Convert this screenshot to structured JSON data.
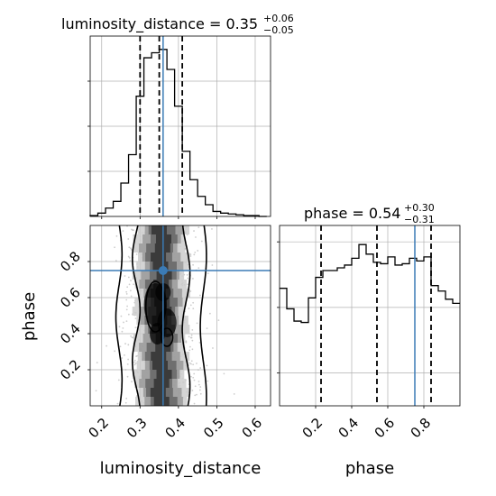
{
  "chart_data": [
    {
      "type": "histogram",
      "panel": "luminosity_distance-1d",
      "title": {
        "param": "luminosity_distance",
        "value": "0.35",
        "upper": "+0.06",
        "lower": "−0.05"
      },
      "bin_edges": [
        0.17,
        0.19,
        0.21,
        0.23,
        0.25,
        0.27,
        0.29,
        0.31,
        0.33,
        0.35,
        0.37,
        0.39,
        0.41,
        0.43,
        0.45,
        0.47,
        0.49,
        0.51,
        0.53,
        0.55,
        0.57,
        0.59,
        0.61,
        0.63
      ],
      "counts": [
        0.005,
        0.02,
        0.05,
        0.09,
        0.2,
        0.37,
        0.72,
        0.95,
        0.98,
        1.0,
        0.88,
        0.66,
        0.39,
        0.22,
        0.12,
        0.07,
        0.03,
        0.02,
        0.015,
        0.01,
        0.005,
        0.005,
        0.0
      ],
      "quantiles": [
        0.3,
        0.35,
        0.41
      ],
      "truth": 0.36,
      "xlim": [
        0.17,
        0.64
      ],
      "ylim": [
        0,
        1.08
      ],
      "grid": true
    },
    {
      "type": "histogram",
      "panel": "phase-1d",
      "title": {
        "param": "phase",
        "value": "0.54",
        "upper": "+0.30",
        "lower": "−0.31"
      },
      "bin_edges": [
        0.0,
        0.04,
        0.08,
        0.12,
        0.16,
        0.2,
        0.24,
        0.28,
        0.32,
        0.36,
        0.4,
        0.44,
        0.48,
        0.52,
        0.56,
        0.6,
        0.64,
        0.68,
        0.72,
        0.76,
        0.8,
        0.84,
        0.88,
        0.92,
        0.96,
        1.0
      ],
      "counts": [
        0.86,
        0.71,
        0.62,
        0.61,
        0.79,
        0.94,
        0.99,
        0.99,
        1.01,
        1.03,
        1.08,
        1.18,
        1.11,
        1.05,
        1.04,
        1.09,
        1.03,
        1.04,
        1.08,
        1.06,
        1.09,
        0.88,
        0.84,
        0.78,
        0.75
      ],
      "quantiles": [
        0.23,
        0.54,
        0.84
      ],
      "truth": 0.75,
      "xlim": [
        0.0,
        1.0
      ],
      "ylim": [
        0.0,
        1.32
      ],
      "grid": true
    },
    {
      "type": "scatter",
      "panel": "2d-posterior",
      "density_levels": [
        "#000000",
        "#333333",
        "#666666",
        "#999999",
        "#cccccc"
      ],
      "truth": {
        "luminosity_distance": 0.36,
        "phase": 0.75
      },
      "xlim": [
        0.17,
        0.64
      ],
      "ylim": [
        0.0,
        1.0
      ],
      "grid": true
    }
  ],
  "axes": {
    "x_ticks_left": [
      "0.2",
      "0.3",
      "0.4",
      "0.5",
      "0.6"
    ],
    "x_ticks_left_values": [
      0.2,
      0.3,
      0.4,
      0.5,
      0.6
    ],
    "x_ticks_right": [
      "0.2",
      "0.4",
      "0.6",
      "0.8"
    ],
    "x_ticks_right_values": [
      0.2,
      0.4,
      0.6,
      0.8
    ],
    "y_ticks_left": [
      "0.2",
      "0.4",
      "0.6",
      "0.8"
    ],
    "y_ticks_left_values": [
      0.2,
      0.4,
      0.6,
      0.8
    ],
    "xlabel_left": "luminosity_distance",
    "xlabel_right": "phase",
    "ylabel": "phase"
  },
  "colors": {
    "hist": "#000000",
    "quantile": "#000000",
    "truth": "#3b7bb5",
    "grid": "#b0b0b0",
    "points": "#b8b8b8"
  }
}
